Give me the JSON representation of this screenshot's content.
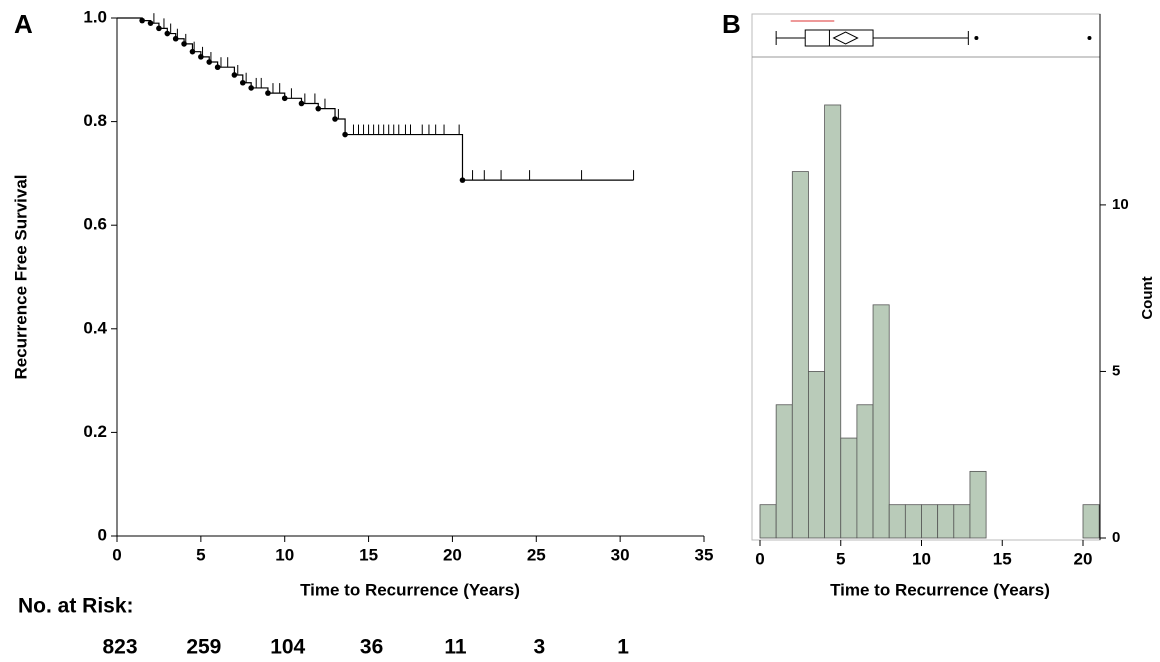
{
  "chart_data": [
    {
      "type": "survival",
      "panel_label": "A",
      "x_label": "Time to Recurrence (Years)",
      "y_label": "Recurrence Free Survival",
      "xlim": [
        0,
        35
      ],
      "ylim": [
        0,
        1.0
      ],
      "xticks": [
        0,
        5,
        10,
        15,
        20,
        25,
        30,
        35
      ],
      "yticks": [
        0,
        0.2,
        0.4,
        0.6,
        0.8,
        {
          "value": 1.0,
          "label": "1.0"
        }
      ],
      "color": "#000000",
      "x": [
        0,
        1.5,
        2,
        2.5,
        3,
        3.5,
        4,
        4.5,
        5,
        5.5,
        6,
        7,
        7.5,
        8,
        9,
        10,
        11,
        12,
        13,
        13.6,
        20.6
      ],
      "y": [
        1.0,
        0.995,
        0.99,
        0.98,
        0.97,
        0.96,
        0.95,
        0.935,
        0.925,
        0.915,
        0.905,
        0.89,
        0.875,
        0.865,
        0.855,
        0.845,
        0.835,
        0.825,
        0.805,
        0.775,
        0.687
      ],
      "censored_x": [
        2.2,
        2.8,
        3.2,
        3.6,
        4.1,
        4.6,
        5.1,
        5.6,
        6.2,
        6.6,
        7.2,
        7.7,
        8.3,
        8.6,
        9.3,
        9.7,
        10.4,
        11.2,
        11.8,
        12.4,
        13.2,
        14.1,
        14.4,
        14.7,
        15.0,
        15.3,
        15.6,
        15.9,
        16.2,
        16.5,
        16.8,
        17.2,
        17.5,
        18.2,
        18.6,
        19.0,
        19.5,
        20.4,
        21.2,
        21.9,
        22.9,
        24.6,
        27.7,
        30.8
      ],
      "risk_label": "No. at Risk:",
      "at_risk": [
        823,
        259,
        104,
        36,
        11,
        3,
        1
      ]
    },
    {
      "type": "histogram",
      "panel_label": "B",
      "x_label": "Time to Recurrence (Years)",
      "y_label": "Count",
      "xlim": [
        0,
        21
      ],
      "ylim": [
        0,
        14.2
      ],
      "xticks": [
        0,
        5,
        10,
        15,
        20
      ],
      "yticks": [
        0,
        5,
        10
      ],
      "color": "#b9cbb9",
      "bins": [
        0,
        1,
        2,
        3,
        4,
        5,
        6,
        7,
        8,
        9,
        10,
        11,
        12,
        13,
        14,
        15,
        16,
        17,
        18,
        19,
        20,
        21
      ],
      "values": [
        1,
        4,
        11,
        5,
        13,
        3,
        4,
        7,
        1,
        1,
        1,
        1,
        1,
        2,
        0,
        0,
        0,
        0,
        0,
        0,
        1
      ],
      "boxplot": {
        "whisker_low": 1.0,
        "q1": 2.8,
        "median": 4.3,
        "q3": 7.0,
        "whisker_high": 12.9,
        "mean": 5.3,
        "outliers": [
          13.4,
          20.4
        ],
        "shortest_half": [
          1.9,
          4.6
        ]
      }
    }
  ]
}
